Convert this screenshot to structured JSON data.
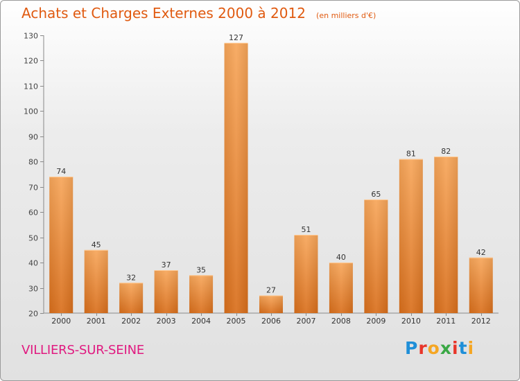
{
  "chart_data": {
    "type": "bar",
    "title": "Achats et Charges Externes 2000 à 2012",
    "subtitle": "(en milliers d'€)",
    "categories": [
      "2000",
      "2001",
      "2002",
      "2003",
      "2004",
      "2005",
      "2006",
      "2007",
      "2008",
      "2009",
      "2010",
      "2011",
      "2012"
    ],
    "values": [
      74,
      45,
      32,
      37,
      35,
      127,
      27,
      51,
      40,
      65,
      81,
      82,
      42
    ],
    "ylim": [
      20,
      130
    ],
    "yticks": [
      20,
      30,
      40,
      50,
      60,
      70,
      80,
      90,
      100,
      110,
      120,
      130
    ],
    "grid": false,
    "bar_color": "#f0923a"
  },
  "footer": {
    "place": "VILLIERS-SUR-SEINE",
    "logo_letters": [
      "P",
      "r",
      "o",
      "x",
      "i",
      "t",
      "i"
    ],
    "logo_colors": [
      "#1f8fd8",
      "#e8362a",
      "#f5a623",
      "#3aa845",
      "#e8362a",
      "#1f8fd8",
      "#f5a623"
    ]
  }
}
